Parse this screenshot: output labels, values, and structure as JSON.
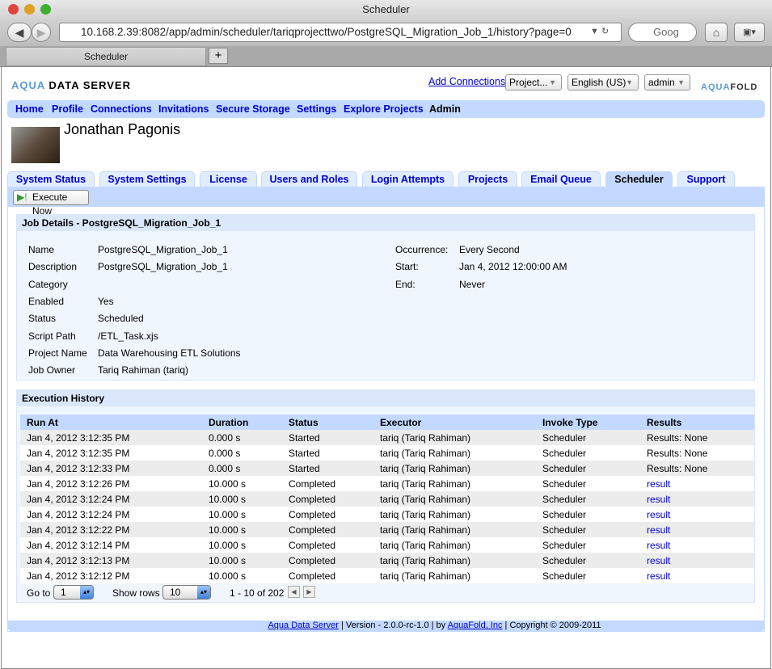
{
  "browser": {
    "title": "Scheduler",
    "url": "10.168.2.39:8082/app/admin/scheduler/tariqprojecttwo/PostgreSQL_Migration_Job_1/history?page=0",
    "search_placeholder": "Goog",
    "tab_title": "Scheduler",
    "new_tab": "+"
  },
  "header": {
    "logo_aqua": "AQUA",
    "logo_rest": "DATA SERVER",
    "add_connections": "Add Connections",
    "project_select": "Project...",
    "language_select": "English (US)",
    "user_select": "admin",
    "brand_aqua": "AQUA",
    "brand_fold": "FOLD"
  },
  "nav": [
    "Home",
    "Profile",
    "Connections",
    "Invitations",
    "Secure Storage",
    "Settings",
    "Explore Projects",
    "Admin"
  ],
  "user": {
    "name": "Jonathan Pagonis"
  },
  "tabs": [
    "System Status",
    "System Settings",
    "License",
    "Users and Roles",
    "Login Attempts",
    "Projects",
    "Email Queue",
    "Scheduler",
    "Support"
  ],
  "execute_now": "Execute Now",
  "job": {
    "title": "Job Details - PostgreSQL_Migration_Job_1",
    "left": [
      [
        "Name",
        "PostgreSQL_Migration_Job_1"
      ],
      [
        "Description",
        "PostgreSQL_Migration_Job_1"
      ],
      [
        "Category",
        ""
      ],
      [
        "Enabled",
        "Yes"
      ],
      [
        "Status",
        "Scheduled"
      ],
      [
        "Script Path",
        "/ETL_Task.xjs"
      ],
      [
        "Project Name",
        "Data Warehousing ETL Solutions"
      ],
      [
        "Job Owner",
        "Tariq Rahiman (tariq)"
      ]
    ],
    "right": [
      [
        "Occurrence:",
        "Every Second"
      ],
      [
        "Start:",
        "Jan 4, 2012 12:00:00 AM"
      ],
      [
        "End:",
        "Never"
      ]
    ]
  },
  "history": {
    "title": "Execution History",
    "columns": [
      "Run At",
      "Duration",
      "Status",
      "Executor",
      "Invoke Type",
      "Results"
    ],
    "rows": [
      [
        "Jan 4, 2012 3:12:35 PM",
        "0.000 s",
        "Started",
        "tariq (Tariq Rahiman)",
        "Scheduler",
        "Results: None"
      ],
      [
        "Jan 4, 2012 3:12:35 PM",
        "0.000 s",
        "Started",
        "tariq (Tariq Rahiman)",
        "Scheduler",
        "Results: None"
      ],
      [
        "Jan 4, 2012 3:12:33 PM",
        "0.000 s",
        "Started",
        "tariq (Tariq Rahiman)",
        "Scheduler",
        "Results: None"
      ],
      [
        "Jan 4, 2012 3:12:26 PM",
        "10.000 s",
        "Completed",
        "tariq (Tariq Rahiman)",
        "Scheduler",
        "result"
      ],
      [
        "Jan 4, 2012 3:12:24 PM",
        "10.000 s",
        "Completed",
        "tariq (Tariq Rahiman)",
        "Scheduler",
        "result"
      ],
      [
        "Jan 4, 2012 3:12:24 PM",
        "10.000 s",
        "Completed",
        "tariq (Tariq Rahiman)",
        "Scheduler",
        "result"
      ],
      [
        "Jan 4, 2012 3:12:22 PM",
        "10.000 s",
        "Completed",
        "tariq (Tariq Rahiman)",
        "Scheduler",
        "result"
      ],
      [
        "Jan 4, 2012 3:12:14 PM",
        "10.000 s",
        "Completed",
        "tariq (Tariq Rahiman)",
        "Scheduler",
        "result"
      ],
      [
        "Jan 4, 2012 3:12:13 PM",
        "10.000 s",
        "Completed",
        "tariq (Tariq Rahiman)",
        "Scheduler",
        "result"
      ],
      [
        "Jan 4, 2012 3:12:12 PM",
        "10.000 s",
        "Completed",
        "tariq (Tariq Rahiman)",
        "Scheduler",
        "result"
      ]
    ],
    "pager": {
      "goto_label": "Go to",
      "goto_value": "1",
      "rows_label": "Show rows",
      "rows_value": "10",
      "range": "1 - 10 of 202"
    }
  },
  "footer": {
    "link1": "Aqua Data Server",
    "mid": " | Version - 2.0.0-rc-1.0 | by ",
    "link2": "AquaFold, Inc",
    "end": " | Copyright © 2009-2011"
  }
}
